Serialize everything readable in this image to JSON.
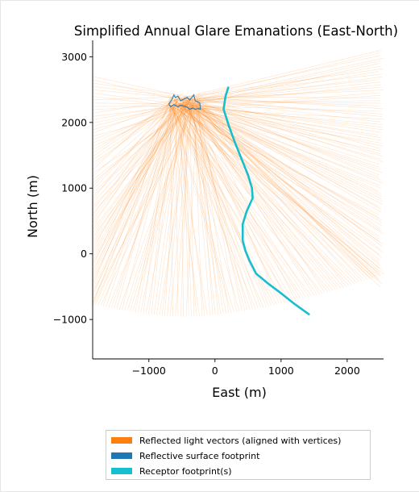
{
  "chart_data": {
    "type": "line",
    "title": "Simplified Annual Glare Emanations (East-North)",
    "xlabel": "East (m)",
    "ylabel": "North (m)",
    "xlim": [
      -1850,
      2550
    ],
    "ylim": [
      -1600,
      3250
    ],
    "xticks": [
      -1000,
      0,
      1000,
      2000
    ],
    "yticks": [
      -1000,
      0,
      1000,
      2000,
      3000
    ],
    "xtick_labels": [
      "−1000",
      "0",
      "1000",
      "2000"
    ],
    "ytick_labels": [
      "−1000",
      "0",
      "1000",
      "2000",
      "3000"
    ],
    "grid": false,
    "legend_position": "bottom-center",
    "series": [
      {
        "name": "Reflected light vectors (aligned with vertices)",
        "color": "#ff7f0e",
        "origin_region": [
          [
            -700,
            2200
          ],
          [
            -250,
            2400
          ]
        ],
        "fan_bounds": [
          {
            "direction": "west",
            "y_range": [
              -800,
              2700
            ]
          },
          {
            "direction": "south",
            "x_range": [
              -1850,
              2550
            ],
            "y_min": -960
          },
          {
            "direction": "east",
            "y_range": [
              -500,
              3100
            ]
          }
        ]
      },
      {
        "name": "Reflective surface footprint",
        "color": "#1f77b4",
        "x": [
          -700,
          -660,
          -620,
          -600,
          -560,
          -520,
          -480,
          -420,
          -380,
          -320,
          -300,
          -230,
          -220,
          -260,
          -300,
          -340,
          -380,
          -420,
          -470,
          -520,
          -560,
          -620,
          -670,
          -700
        ],
        "y": [
          2280,
          2330,
          2420,
          2380,
          2400,
          2330,
          2350,
          2380,
          2340,
          2420,
          2330,
          2300,
          2200,
          2210,
          2200,
          2220,
          2200,
          2230,
          2250,
          2260,
          2240,
          2270,
          2240,
          2280
        ]
      },
      {
        "name": "Receptor footprint(s)",
        "color": "#17becf",
        "x": [
          200,
          160,
          130,
          210,
          300,
          400,
          500,
          560,
          570,
          480,
          420,
          420,
          460,
          520,
          620,
          800,
          1000,
          1200,
          1420
        ],
        "y": [
          2530,
          2400,
          2200,
          1950,
          1700,
          1450,
          1200,
          1000,
          850,
          650,
          450,
          200,
          50,
          -100,
          -300,
          -450,
          -600,
          -760,
          -920
        ]
      }
    ]
  }
}
